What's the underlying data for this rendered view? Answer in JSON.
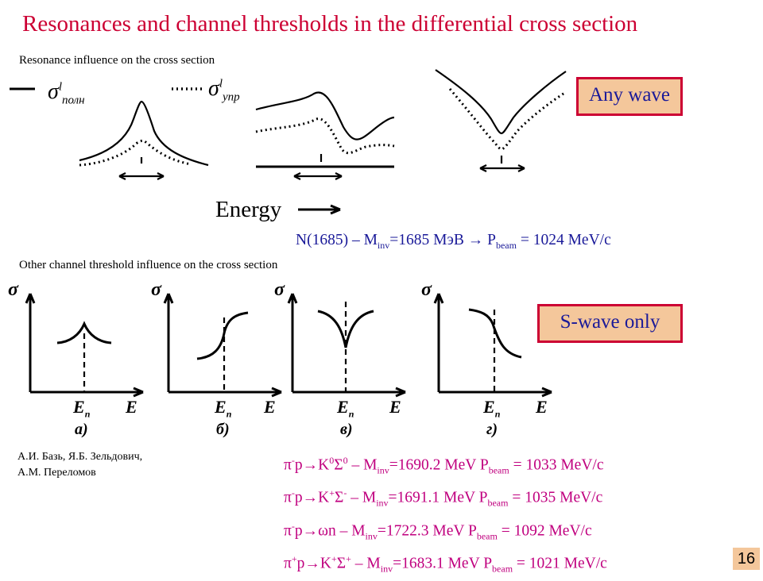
{
  "title": "Resonances and channel thresholds in the differential cross section",
  "resonance_caption": "Resonance influence on the cross section",
  "threshold_caption": "Other channel threshold influence on the cross section",
  "any_wave_label": "Any wave",
  "s_wave_label": "S-wave only",
  "energy_label": "Energy",
  "legend": {
    "full_symbol": "σ",
    "full_sup": "l",
    "full_sub": "полн",
    "elastic_symbol": "σ",
    "elastic_sup": "l",
    "elastic_sub": "упр"
  },
  "resonance_line": {
    "lhs": "N(1685) – M",
    "lhs_sub": "inv",
    "mid": "=1685 МэВ  → P",
    "mid_sub": "beam",
    "rhs": " = 1024 MeV/c"
  },
  "threshold_panels": [
    {
      "sigma": "σ",
      "en_main": "E",
      "en_sub": "п",
      "e": "E",
      "caption": "а)"
    },
    {
      "sigma": "σ",
      "en_main": "E",
      "en_sub": "п",
      "e": "E",
      "caption": "б)"
    },
    {
      "sigma": "σ",
      "en_main": "E",
      "en_sub": "п",
      "e": "E",
      "caption": "в)"
    },
    {
      "sigma": "σ",
      "en_main": "E",
      "en_sub": "п",
      "e": "E",
      "caption": "г)"
    }
  ],
  "authors": {
    "line1": "А.И. Базь, Я.Б. Зельдович,",
    "line2": "А.М. Переломов"
  },
  "reactions": [
    {
      "pre": "π",
      "pre_sup": "-",
      "mid": "p→K",
      "mid_sup": "0",
      "sigma": "Σ",
      "sigma_sup": "0",
      "dash": " – M",
      "inv": "inv",
      "mass": "=1690.2 MeV  P",
      "beam": "beam",
      "mom": " =  1033 MeV/c"
    },
    {
      "pre": "π",
      "pre_sup": "-",
      "mid": "p→K",
      "mid_sup": "+",
      "sigma": "Σ",
      "sigma_sup": "-",
      "dash": " – M",
      "inv": "inv",
      "mass": "=1691.1 MeV  P",
      "beam": "beam",
      "mom": " =  1035 MeV/c"
    },
    {
      "pre": "π",
      "pre_sup": "-",
      "mid": "p→ωn",
      "mid_sup": "",
      "sigma": "",
      "sigma_sup": "",
      "dash": "    – M",
      "inv": "inv",
      "mass": "=1722.3 MeV  P",
      "beam": "beam",
      "mom": " =  1092 MeV/c"
    },
    {
      "pre": "π",
      "pre_sup": "+",
      "mid": "p→K",
      "mid_sup": "+",
      "sigma": "Σ",
      "sigma_sup": "+",
      "dash": " – M",
      "inv": "inv",
      "mass": "=1683.1 MeV  P",
      "beam": "beam",
      "mom": " =  1021 MeV/c"
    }
  ],
  "page_number": "16"
}
